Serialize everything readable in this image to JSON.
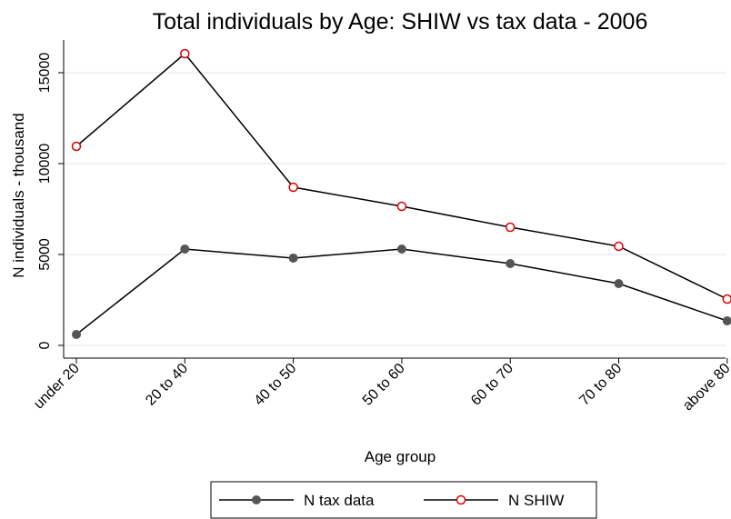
{
  "chart_data": {
    "type": "line",
    "title": "Total individuals by Age: SHIW vs tax data - 2006",
    "xlabel": "Age group",
    "ylabel": "N individuals - thousand",
    "categories": [
      "under 20",
      "20 to 40",
      "40 to 50",
      "50 to 60",
      "60 to 70",
      "70 to 80",
      "above 80"
    ],
    "yticks": [
      0,
      5000,
      10000,
      15000
    ],
    "ylim": [
      -700,
      16800
    ],
    "grid": true,
    "legend_position": "bottom",
    "series": [
      {
        "name": "N tax data",
        "values": [
          600,
          5300,
          4800,
          5300,
          4500,
          3400,
          1350
        ],
        "line_color": "#000000",
        "marker": "filled-circle",
        "marker_color": "#555555"
      },
      {
        "name": "N SHIW",
        "values": [
          10950,
          16050,
          8700,
          7650,
          6500,
          5450,
          2550
        ],
        "line_color": "#000000",
        "marker": "hollow-circle",
        "marker_color": "#e00000"
      }
    ]
  }
}
